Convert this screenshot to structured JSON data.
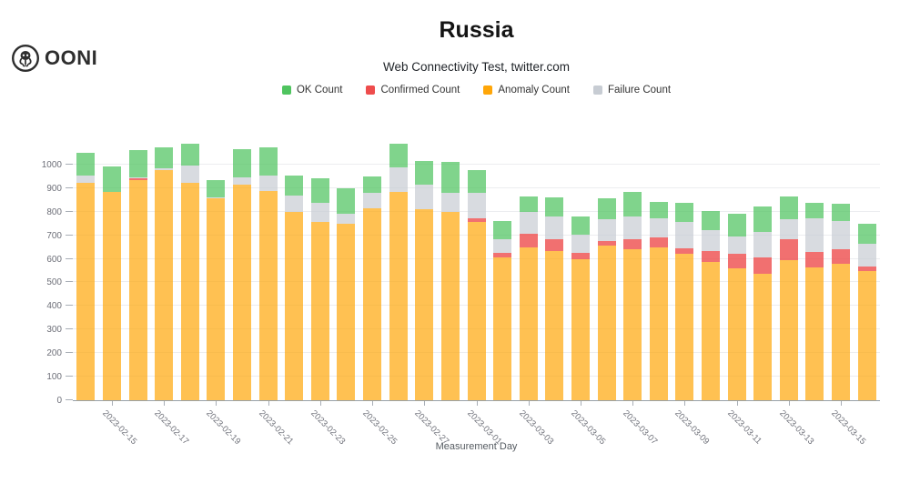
{
  "header": {
    "logo_text": "OONI",
    "title": "Russia",
    "subtitle": "Web Connectivity Test, twitter.com"
  },
  "legend": [
    {
      "label": "OK Count",
      "color": "#4fc45f"
    },
    {
      "label": "Confirmed Count",
      "color": "#ee4c4c"
    },
    {
      "label": "Anomaly Count",
      "color": "#ffa608"
    },
    {
      "label": "Failure Count",
      "color": "#c7ccd3"
    }
  ],
  "chart_data": {
    "type": "bar",
    "stacked": true,
    "title": "Russia",
    "subtitle": "Web Connectivity Test, twitter.com",
    "xlabel": "Measurement Day",
    "ylabel": "",
    "ylim": [
      0,
      1100
    ],
    "ytick_step": 100,
    "ytick_max": 1000,
    "grid": true,
    "legend_position": "top",
    "x_label_rotation_deg": 45,
    "x_labels_shown_every_other_starting_at_second_category": true,
    "categories": [
      "2023-02-14",
      "2023-02-15",
      "2023-02-16",
      "2023-02-17",
      "2023-02-18",
      "2023-02-19",
      "2023-02-20",
      "2023-02-21",
      "2023-02-22",
      "2023-02-23",
      "2023-02-24",
      "2023-02-25",
      "2023-02-26",
      "2023-02-27",
      "2023-02-28",
      "2023-03-01",
      "2023-03-02",
      "2023-03-03",
      "2023-03-04",
      "2023-03-05",
      "2023-03-06",
      "2023-03-07",
      "2023-03-08",
      "2023-03-09",
      "2023-03-10",
      "2023-03-11",
      "2023-03-12",
      "2023-03-13",
      "2023-03-14",
      "2023-03-15",
      "2023-03-16"
    ],
    "series": [
      {
        "name": "Anomaly Count",
        "color": "#ffa608",
        "fill_opacity": 0.7,
        "values": [
          922,
          885,
          933,
          975,
          923,
          855,
          916,
          888,
          800,
          758,
          750,
          813,
          884,
          810,
          800,
          755,
          605,
          650,
          633,
          598,
          656,
          639,
          647,
          621,
          588,
          559,
          536,
          594,
          562,
          579,
          549
        ]
      },
      {
        "name": "Confirmed Count",
        "color": "#ee4c4c",
        "fill_opacity": 0.8,
        "values": [
          0,
          0,
          7,
          0,
          0,
          0,
          0,
          0,
          0,
          0,
          0,
          0,
          0,
          0,
          0,
          17,
          21,
          57,
          51,
          28,
          19,
          43,
          44,
          22,
          45,
          61,
          71,
          88,
          68,
          60,
          19
        ]
      },
      {
        "name": "Failure Count",
        "color": "#c7ccd3",
        "fill_opacity": 0.7,
        "values": [
          33,
          0,
          4,
          9,
          72,
          4,
          30,
          64,
          68,
          81,
          41,
          66,
          103,
          106,
          81,
          109,
          58,
          93,
          94,
          75,
          93,
          96,
          81,
          112,
          90,
          75,
          107,
          86,
          142,
          120,
          97
        ]
      },
      {
        "name": "OK Count",
        "color": "#4fc45f",
        "fill_opacity": 0.72,
        "values": [
          94,
          107,
          117,
          88,
          95,
          76,
          118,
          122,
          87,
          104,
          109,
          72,
          100,
          100,
          129,
          94,
          75,
          66,
          84,
          77,
          90,
          106,
          71,
          84,
          81,
          96,
          109,
          96,
          67,
          73,
          84
        ]
      }
    ]
  }
}
